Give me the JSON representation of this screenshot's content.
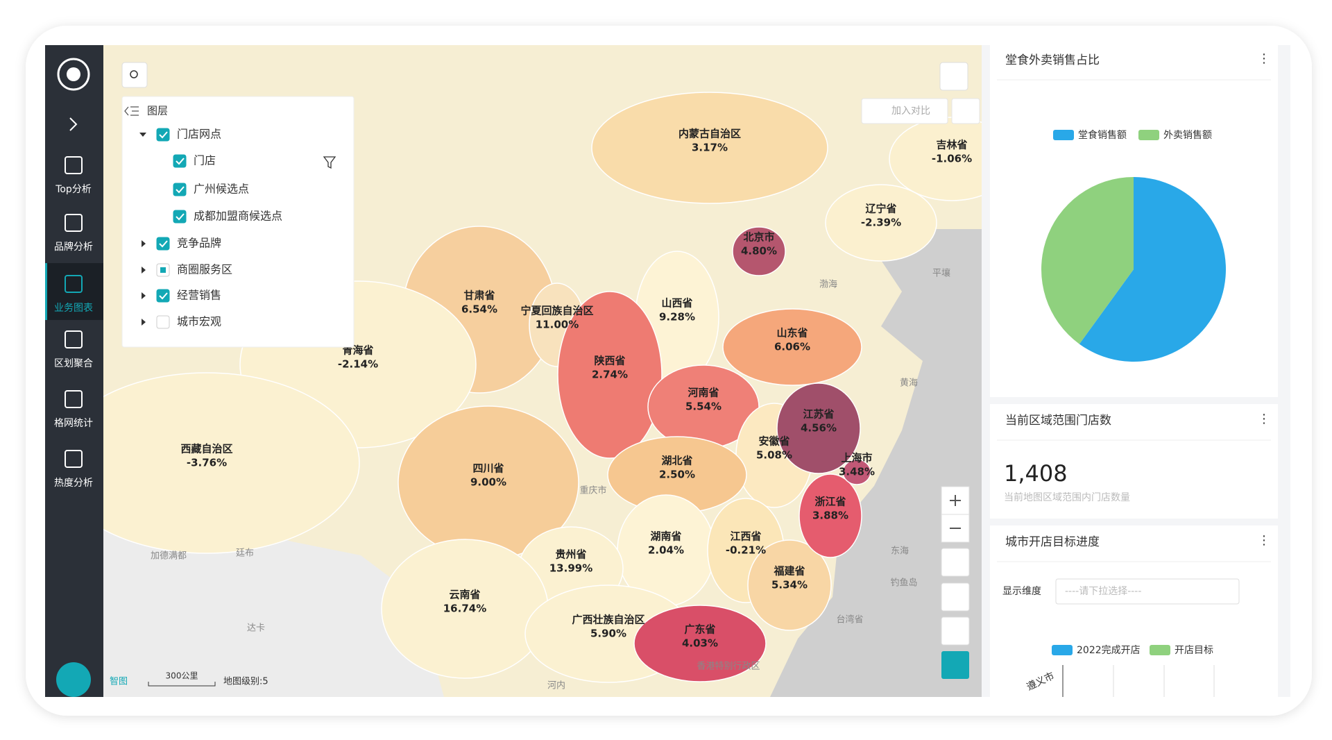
{
  "sidebar": {
    "items": [
      "Top分析",
      "品牌分析",
      "业务图表",
      "区划聚合",
      "格网统计",
      "热度分析"
    ],
    "active": 2
  },
  "layers": {
    "title": "图层",
    "items": [
      {
        "label": "门店网点",
        "checked": true
      },
      {
        "label": "门店",
        "checked": true
      },
      {
        "label": "广州候选点",
        "checked": true
      },
      {
        "label": "成都加盟商候选点",
        "checked": true
      },
      {
        "label": "竞争品牌",
        "checked": true
      },
      {
        "label": "商圈服务区",
        "checked": "partial"
      },
      {
        "label": "经营销售",
        "checked": true
      },
      {
        "label": "城市宏观",
        "checked": false
      }
    ]
  },
  "toolbar": {
    "compare": "加入对比"
  },
  "map": {
    "logo": "智图",
    "scale": "300公里",
    "level": "地图级别:5",
    "provinces": [
      {
        "name": "内蒙古自治区",
        "label": "3.17%",
        "color": "#f9dcaa"
      },
      {
        "name": "吉林省",
        "label": "-1.06%",
        "color": "#fbf0cf"
      },
      {
        "name": "辽宁省",
        "label": "-2.39%",
        "color": "#fbf0cf"
      },
      {
        "name": "甘肃省",
        "label": "6.54%",
        "color": "#f6cf9e"
      },
      {
        "name": "宁夏回族自治区",
        "label": "11.00%",
        "color": "#f8e2bd"
      },
      {
        "name": "山西省",
        "label": "9.28%",
        "color": "#fdf3d5"
      },
      {
        "name": "山东省",
        "label": "6.06%",
        "color": "#f5a77b"
      },
      {
        "name": "青海省",
        "label": "-2.14%",
        "color": "#fbf1d1"
      },
      {
        "name": "陕西省",
        "label": "2.74%",
        "color": "#ee7b72"
      },
      {
        "name": "河南省",
        "label": "5.54%",
        "color": "#ef8077"
      },
      {
        "name": "安徽省",
        "label": "5.08%",
        "color": "#fce9c1"
      },
      {
        "name": "西藏自治区",
        "label": "-3.76%",
        "color": "#fbf1d1"
      },
      {
        "name": "四川省",
        "label": "9.00%",
        "color": "#f6cd99"
      },
      {
        "name": "湖北省",
        "label": "2.50%",
        "color": "#f6c790"
      },
      {
        "name": "湖南省",
        "label": "2.04%",
        "color": "#fdf3d5"
      },
      {
        "name": "江西省",
        "label": "-0.21%",
        "color": "#fbe6b8"
      },
      {
        "name": "贵州省",
        "label": "13.99%",
        "color": "#fbf1d1"
      },
      {
        "name": "福建省",
        "label": "5.34%",
        "color": "#f8d6a5"
      },
      {
        "name": "云南省",
        "label": "16.74%",
        "color": "#fbf1d1"
      },
      {
        "name": "广西壮族自治区",
        "label": "5.90%",
        "color": "#fbf1d1"
      },
      {
        "name": "广东省",
        "label": "4.03%",
        "color": "#d94f68"
      },
      {
        "name": "浙江省",
        "label": "3.88%",
        "color": "#e55c6e"
      },
      {
        "name": "江苏省",
        "label": "4.56%",
        "color": "#a04f6a"
      },
      {
        "name": "上海市",
        "label": "3.48%",
        "color": "#c25876"
      },
      {
        "name": "北京市",
        "label": "4.80%",
        "color": "#b5566e"
      }
    ],
    "places": [
      "平壤",
      "渤海",
      "黄海",
      "东海",
      "台湾省",
      "香港特别行政区",
      "重庆市",
      "加德满都",
      "廷布",
      "达卡",
      "河内",
      "钓鱼岛"
    ]
  },
  "panels": {
    "pie": {
      "title": "堂食外卖销售占比",
      "series": [
        {
          "name": "堂食销售额",
          "color": "#29a8e8",
          "value": 60
        },
        {
          "name": "外卖销售额",
          "color": "#8fd17e",
          "value": 40
        }
      ]
    },
    "count": {
      "title": "当前区域范围门店数",
      "value": "1,408",
      "caption": "当前地图区域范围内门店数量"
    },
    "progress": {
      "title": "城市开店目标进度",
      "filter_label": "显示维度",
      "placeholder": "----请下拉选择----",
      "legend": [
        {
          "name": "2022完成开店",
          "color": "#29a8e8"
        },
        {
          "name": "开店目标",
          "color": "#8fd17e"
        }
      ],
      "categories": [
        "遵义市"
      ]
    }
  }
}
